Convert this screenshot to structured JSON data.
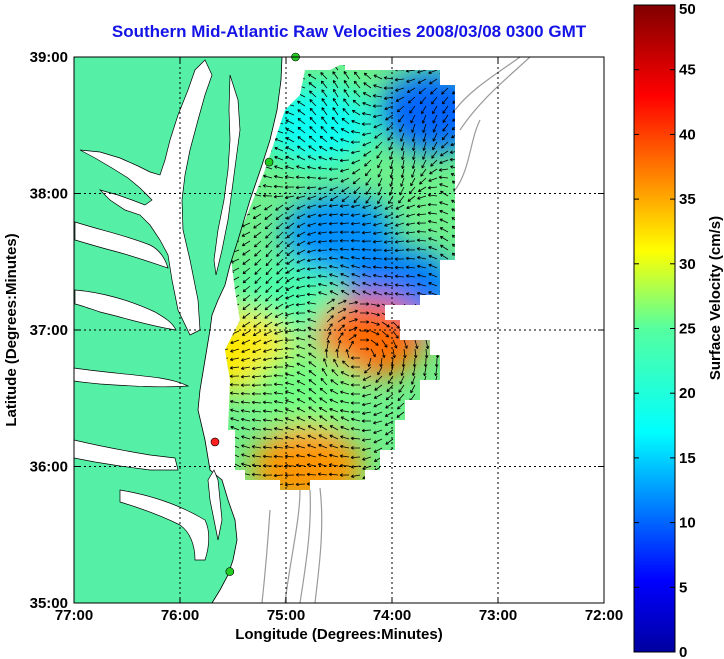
{
  "title": "Southern Mid-Atlantic Raw Velocities 2008/03/08 0300 GMT",
  "x_axis": {
    "label": "Longitude (Degrees:Minutes)",
    "range": [
      -77,
      -72
    ],
    "ticks": [
      {
        "value": -77,
        "label": "77:00"
      },
      {
        "value": -76,
        "label": "76:00"
      },
      {
        "value": -75,
        "label": "75:00"
      },
      {
        "value": -74,
        "label": "74:00"
      },
      {
        "value": -73,
        "label": "73:00"
      },
      {
        "value": -72,
        "label": "72:00"
      }
    ]
  },
  "y_axis": {
    "label": "Latitude (Degrees:Minutes)",
    "range": [
      35,
      39
    ],
    "ticks": [
      {
        "value": 35,
        "label": "35:00"
      },
      {
        "value": 36,
        "label": "36:00"
      },
      {
        "value": 37,
        "label": "37:00"
      },
      {
        "value": 38,
        "label": "38:00"
      },
      {
        "value": 39,
        "label": "39:00"
      }
    ]
  },
  "colorbar": {
    "label": "Surface Velocity (cm/s)",
    "range": [
      0,
      50
    ],
    "ticks": [
      {
        "value": 0,
        "label": "0"
      },
      {
        "value": 5,
        "label": "5"
      },
      {
        "value": 10,
        "label": "10"
      },
      {
        "value": 15,
        "label": "15"
      },
      {
        "value": 20,
        "label": "20"
      },
      {
        "value": 25,
        "label": "25"
      },
      {
        "value": 30,
        "label": "30"
      },
      {
        "value": 35,
        "label": "35"
      },
      {
        "value": 40,
        "label": "40"
      },
      {
        "value": 45,
        "label": "45"
      },
      {
        "value": 50,
        "label": "50"
      }
    ]
  },
  "colors": {
    "land": "#55f0a6",
    "title": "#1414e6",
    "bathymetry": "#9a9a9a",
    "coastline": "#000000"
  },
  "stations": [
    {
      "lon": -74.91,
      "lat": 39.0,
      "color": "#22cc22"
    },
    {
      "lon": -75.16,
      "lat": 38.23,
      "color": "#22cc22"
    },
    {
      "lon": -75.67,
      "lat": 36.18,
      "color": "#ff2020"
    },
    {
      "lon": -75.53,
      "lat": 35.23,
      "color": "#22cc22"
    }
  ],
  "chart_data": {
    "type": "heatmap",
    "grid": "dotted",
    "colormap": "jet",
    "velocity_range_cm_s": [
      0,
      50
    ],
    "velocity_zones": [
      {
        "region": "north near-shore",
        "lon": -74.7,
        "lat": 38.5,
        "speed": 18
      },
      {
        "region": "north offshore",
        "lon": -73.6,
        "lat": 38.6,
        "speed": 10
      },
      {
        "region": "central",
        "lon": -74.5,
        "lat": 37.7,
        "speed": 12
      },
      {
        "region": "central offshore",
        "lon": -73.9,
        "lat": 37.3,
        "speed": 11
      },
      {
        "region": "mid coast",
        "lon": -75.0,
        "lat": 37.2,
        "speed": 24
      },
      {
        "region": "eddy",
        "lon": -74.2,
        "lat": 36.95,
        "speed": 38
      },
      {
        "region": "mouth of bay",
        "lon": -75.45,
        "lat": 36.85,
        "speed": 32
      },
      {
        "region": "south-central",
        "lon": -74.8,
        "lat": 36.55,
        "speed": 26
      },
      {
        "region": "south",
        "lon": -74.8,
        "lat": 36.0,
        "speed": 36
      }
    ]
  }
}
